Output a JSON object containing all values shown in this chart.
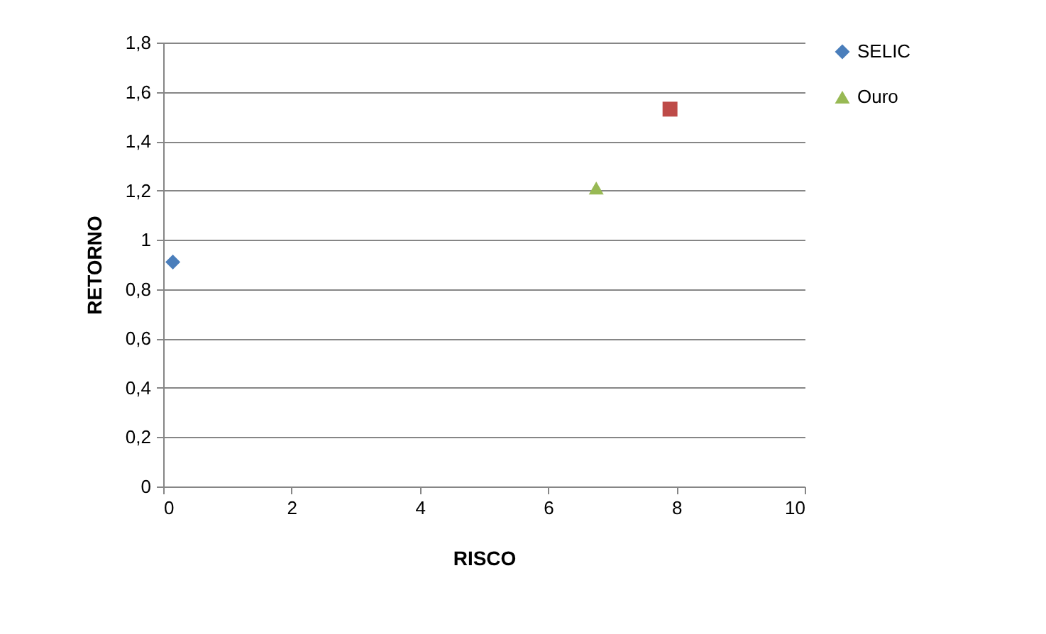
{
  "chart_data": {
    "type": "scatter",
    "xlabel": "RISCO",
    "ylabel": "RETORNO",
    "series": [
      {
        "name": "SELIC",
        "color": "#4a7ebb",
        "marker": "diamond",
        "x": [
          0.15
        ],
        "values": [
          0.91
        ]
      },
      {
        "color": "#be4b48",
        "marker": "square",
        "x": [
          7.9
        ],
        "values": [
          1.53
        ]
      },
      {
        "name": "Ouro",
        "color": "#98b954",
        "marker": "triangle",
        "x": [
          6.75
        ],
        "values": [
          1.21
        ]
      }
    ],
    "xlim": [
      0,
      10
    ],
    "xticks": [
      0,
      2,
      4,
      6,
      8,
      10
    ],
    "ylim": [
      0,
      1.8
    ],
    "yticks": [
      0,
      {
        "value": 0.2,
        "label": "0,2"
      },
      {
        "value": 0.4,
        "label": "0,4"
      },
      {
        "value": 0.6,
        "label": "0,6"
      },
      {
        "value": 0.8,
        "label": "0,8"
      },
      1,
      {
        "value": 1.2,
        "label": "1,2"
      },
      {
        "value": 1.4,
        "label": "1,4"
      },
      {
        "value": 1.6,
        "label": "1,6"
      },
      {
        "value": 1.8,
        "label": "1,8"
      }
    ],
    "grid": "y",
    "legend": "right"
  }
}
